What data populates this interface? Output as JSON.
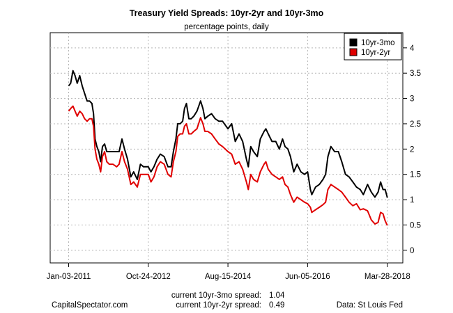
{
  "chart_data": {
    "type": "line",
    "title": "Treasury Yield Spreads: 10yr-2yr and 10yr-3mo",
    "subtitle": "percentage points, daily",
    "xlabel": "",
    "ylabel": "",
    "y_axis_side": "right",
    "ylim": [
      -0.25,
      4.3
    ],
    "yticks": [
      0,
      0.5,
      1,
      1.5,
      2,
      2.5,
      3,
      3.5,
      4
    ],
    "ytick_labels": [
      "0",
      "0.5",
      "1",
      "1.5",
      "2",
      "2.5",
      "3",
      "3.5",
      "4"
    ],
    "xlim": [
      "2010-08-03",
      "2018-08-03"
    ],
    "xticks": [
      "2011-01-03",
      "2012-10-24",
      "2014-08-15",
      "2016-06-05",
      "2018-03-28"
    ],
    "xtick_labels": [
      "Jan-03-2011",
      "Oct-24-2012",
      "Aug-15-2014",
      "Jun-05-2016",
      "Mar-28-2018"
    ],
    "grid": true,
    "legend_position": "top-right",
    "series": [
      {
        "name": "10yr-3mo",
        "color": "#000000",
        "points": [
          [
            "2011-01-03",
            3.25
          ],
          [
            "2011-01-20",
            3.3
          ],
          [
            "2011-02-08",
            3.55
          ],
          [
            "2011-02-25",
            3.45
          ],
          [
            "2011-03-15",
            3.3
          ],
          [
            "2011-04-05",
            3.45
          ],
          [
            "2011-04-25",
            3.25
          ],
          [
            "2011-05-15",
            3.1
          ],
          [
            "2011-06-05",
            2.95
          ],
          [
            "2011-06-25",
            2.95
          ],
          [
            "2011-07-15",
            2.9
          ],
          [
            "2011-07-28",
            2.7
          ],
          [
            "2011-08-10",
            2.2
          ],
          [
            "2011-08-25",
            2.05
          ],
          [
            "2011-09-10",
            1.95
          ],
          [
            "2011-09-25",
            1.75
          ],
          [
            "2011-10-10",
            2.05
          ],
          [
            "2011-10-28",
            2.1
          ],
          [
            "2011-11-15",
            1.95
          ],
          [
            "2011-12-05",
            1.95
          ],
          [
            "2012-01-05",
            1.95
          ],
          [
            "2012-02-05",
            1.95
          ],
          [
            "2012-02-25",
            1.95
          ],
          [
            "2012-03-20",
            2.2
          ],
          [
            "2012-04-10",
            2.0
          ],
          [
            "2012-05-05",
            1.8
          ],
          [
            "2012-06-01",
            1.45
          ],
          [
            "2012-06-25",
            1.55
          ],
          [
            "2012-07-25",
            1.4
          ],
          [
            "2012-08-20",
            1.7
          ],
          [
            "2012-09-15",
            1.65
          ],
          [
            "2012-10-24",
            1.65
          ],
          [
            "2012-11-15",
            1.55
          ],
          [
            "2012-12-10",
            1.65
          ],
          [
            "2013-01-05",
            1.8
          ],
          [
            "2013-02-01",
            1.9
          ],
          [
            "2013-03-05",
            1.85
          ],
          [
            "2013-04-05",
            1.65
          ],
          [
            "2013-05-01",
            1.65
          ],
          [
            "2013-05-20",
            1.95
          ],
          [
            "2013-06-10",
            2.2
          ],
          [
            "2013-06-25",
            2.5
          ],
          [
            "2013-07-15",
            2.5
          ],
          [
            "2013-08-05",
            2.55
          ],
          [
            "2013-08-20",
            2.8
          ],
          [
            "2013-09-05",
            2.9
          ],
          [
            "2013-09-25",
            2.6
          ],
          [
            "2013-10-15",
            2.6
          ],
          [
            "2013-11-05",
            2.65
          ],
          [
            "2013-12-01",
            2.75
          ],
          [
            "2013-12-31",
            2.95
          ],
          [
            "2014-01-20",
            2.8
          ],
          [
            "2014-02-05",
            2.6
          ],
          [
            "2014-03-01",
            2.65
          ],
          [
            "2014-04-01",
            2.7
          ],
          [
            "2014-05-01",
            2.6
          ],
          [
            "2014-06-01",
            2.55
          ],
          [
            "2014-07-01",
            2.55
          ],
          [
            "2014-08-15",
            2.4
          ],
          [
            "2014-09-15",
            2.5
          ],
          [
            "2014-10-15",
            2.15
          ],
          [
            "2014-11-15",
            2.3
          ],
          [
            "2014-12-15",
            2.15
          ],
          [
            "2015-01-15",
            1.8
          ],
          [
            "2015-01-31",
            1.65
          ],
          [
            "2015-02-20",
            2.05
          ],
          [
            "2015-03-15",
            1.95
          ],
          [
            "2015-04-15",
            1.85
          ],
          [
            "2015-05-10",
            2.2
          ],
          [
            "2015-06-10",
            2.35
          ],
          [
            "2015-06-25",
            2.4
          ],
          [
            "2015-07-15",
            2.3
          ],
          [
            "2015-08-15",
            2.15
          ],
          [
            "2015-09-15",
            2.15
          ],
          [
            "2015-10-15",
            2.0
          ],
          [
            "2015-11-10",
            2.2
          ],
          [
            "2015-12-01",
            2.05
          ],
          [
            "2015-12-25",
            2.0
          ],
          [
            "2016-01-15",
            1.85
          ],
          [
            "2016-02-11",
            1.55
          ],
          [
            "2016-03-10",
            1.7
          ],
          [
            "2016-04-10",
            1.55
          ],
          [
            "2016-05-10",
            1.5
          ],
          [
            "2016-06-05",
            1.55
          ],
          [
            "2016-06-28",
            1.2
          ],
          [
            "2016-07-10",
            1.1
          ],
          [
            "2016-08-10",
            1.25
          ],
          [
            "2016-09-10",
            1.3
          ],
          [
            "2016-10-10",
            1.4
          ],
          [
            "2016-11-01",
            1.5
          ],
          [
            "2016-11-20",
            1.85
          ],
          [
            "2016-12-15",
            2.05
          ],
          [
            "2017-01-15",
            1.95
          ],
          [
            "2017-02-15",
            1.95
          ],
          [
            "2017-03-15",
            1.75
          ],
          [
            "2017-04-15",
            1.5
          ],
          [
            "2017-05-15",
            1.45
          ],
          [
            "2017-06-15",
            1.35
          ],
          [
            "2017-07-15",
            1.25
          ],
          [
            "2017-08-15",
            1.2
          ],
          [
            "2017-09-10",
            1.1
          ],
          [
            "2017-10-15",
            1.3
          ],
          [
            "2017-11-15",
            1.15
          ],
          [
            "2017-12-15",
            1.05
          ],
          [
            "2018-01-10",
            1.15
          ],
          [
            "2018-01-31",
            1.35
          ],
          [
            "2018-02-20",
            1.2
          ],
          [
            "2018-03-10",
            1.2
          ],
          [
            "2018-03-28",
            1.04
          ]
        ]
      },
      {
        "name": "10yr-2yr",
        "color": "#e00000",
        "points": [
          [
            "2011-01-03",
            2.75
          ],
          [
            "2011-01-20",
            2.8
          ],
          [
            "2011-02-08",
            2.85
          ],
          [
            "2011-02-25",
            2.75
          ],
          [
            "2011-03-15",
            2.65
          ],
          [
            "2011-04-05",
            2.75
          ],
          [
            "2011-04-25",
            2.7
          ],
          [
            "2011-05-15",
            2.6
          ],
          [
            "2011-06-05",
            2.55
          ],
          [
            "2011-06-25",
            2.6
          ],
          [
            "2011-07-15",
            2.6
          ],
          [
            "2011-07-28",
            2.45
          ],
          [
            "2011-08-10",
            2.0
          ],
          [
            "2011-08-25",
            1.8
          ],
          [
            "2011-09-10",
            1.7
          ],
          [
            "2011-09-25",
            1.55
          ],
          [
            "2011-10-10",
            1.85
          ],
          [
            "2011-10-28",
            1.95
          ],
          [
            "2011-11-15",
            1.75
          ],
          [
            "2011-12-05",
            1.7
          ],
          [
            "2012-01-05",
            1.7
          ],
          [
            "2012-02-05",
            1.65
          ],
          [
            "2012-02-25",
            1.7
          ],
          [
            "2012-03-20",
            1.95
          ],
          [
            "2012-04-10",
            1.75
          ],
          [
            "2012-05-05",
            1.6
          ],
          [
            "2012-06-01",
            1.3
          ],
          [
            "2012-06-25",
            1.35
          ],
          [
            "2012-07-25",
            1.25
          ],
          [
            "2012-08-20",
            1.5
          ],
          [
            "2012-09-15",
            1.5
          ],
          [
            "2012-10-24",
            1.5
          ],
          [
            "2012-11-15",
            1.35
          ],
          [
            "2012-12-10",
            1.45
          ],
          [
            "2013-01-05",
            1.65
          ],
          [
            "2013-02-01",
            1.75
          ],
          [
            "2013-03-05",
            1.7
          ],
          [
            "2013-04-05",
            1.5
          ],
          [
            "2013-05-01",
            1.45
          ],
          [
            "2013-05-20",
            1.75
          ],
          [
            "2013-06-10",
            1.95
          ],
          [
            "2013-06-25",
            2.25
          ],
          [
            "2013-07-15",
            2.3
          ],
          [
            "2013-08-05",
            2.3
          ],
          [
            "2013-08-20",
            2.45
          ],
          [
            "2013-09-05",
            2.5
          ],
          [
            "2013-09-25",
            2.3
          ],
          [
            "2013-10-15",
            2.3
          ],
          [
            "2013-11-05",
            2.35
          ],
          [
            "2013-12-01",
            2.4
          ],
          [
            "2013-12-31",
            2.62
          ],
          [
            "2014-01-20",
            2.5
          ],
          [
            "2014-02-05",
            2.35
          ],
          [
            "2014-03-01",
            2.35
          ],
          [
            "2014-04-01",
            2.3
          ],
          [
            "2014-05-01",
            2.2
          ],
          [
            "2014-06-01",
            2.1
          ],
          [
            "2014-07-01",
            2.05
          ],
          [
            "2014-08-15",
            1.95
          ],
          [
            "2014-09-15",
            1.9
          ],
          [
            "2014-10-15",
            1.7
          ],
          [
            "2014-11-15",
            1.75
          ],
          [
            "2014-12-15",
            1.6
          ],
          [
            "2015-01-15",
            1.35
          ],
          [
            "2015-01-31",
            1.2
          ],
          [
            "2015-02-20",
            1.5
          ],
          [
            "2015-03-15",
            1.4
          ],
          [
            "2015-04-15",
            1.35
          ],
          [
            "2015-05-10",
            1.55
          ],
          [
            "2015-06-10",
            1.7
          ],
          [
            "2015-06-25",
            1.75
          ],
          [
            "2015-07-15",
            1.6
          ],
          [
            "2015-08-15",
            1.5
          ],
          [
            "2015-09-15",
            1.45
          ],
          [
            "2015-10-15",
            1.4
          ],
          [
            "2015-11-10",
            1.45
          ],
          [
            "2015-12-01",
            1.3
          ],
          [
            "2015-12-25",
            1.25
          ],
          [
            "2016-01-15",
            1.1
          ],
          [
            "2016-02-11",
            0.95
          ],
          [
            "2016-03-10",
            1.05
          ],
          [
            "2016-04-10",
            1.0
          ],
          [
            "2016-05-10",
            0.95
          ],
          [
            "2016-06-05",
            0.92
          ],
          [
            "2016-06-28",
            0.85
          ],
          [
            "2016-07-10",
            0.75
          ],
          [
            "2016-08-10",
            0.8
          ],
          [
            "2016-09-10",
            0.85
          ],
          [
            "2016-10-10",
            0.9
          ],
          [
            "2016-11-01",
            0.95
          ],
          [
            "2016-11-20",
            1.2
          ],
          [
            "2016-12-15",
            1.3
          ],
          [
            "2017-01-15",
            1.25
          ],
          [
            "2017-02-15",
            1.2
          ],
          [
            "2017-03-15",
            1.15
          ],
          [
            "2017-04-15",
            1.05
          ],
          [
            "2017-05-15",
            0.95
          ],
          [
            "2017-06-15",
            0.88
          ],
          [
            "2017-07-15",
            0.92
          ],
          [
            "2017-08-15",
            0.8
          ],
          [
            "2017-09-10",
            0.82
          ],
          [
            "2017-10-15",
            0.78
          ],
          [
            "2017-11-15",
            0.6
          ],
          [
            "2017-12-15",
            0.52
          ],
          [
            "2018-01-10",
            0.55
          ],
          [
            "2018-01-31",
            0.75
          ],
          [
            "2018-02-20",
            0.72
          ],
          [
            "2018-03-10",
            0.58
          ],
          [
            "2018-03-28",
            0.49
          ]
        ]
      }
    ]
  },
  "footer": {
    "source_left": "CapitalSpectator.com",
    "source_right": "Data: St Louis Fed",
    "current_3mo_label": "current 10yr-3mo spread:",
    "current_3mo_value": "1.04",
    "current_2yr_label": "current 10yr-2yr spread:",
    "current_2yr_value": "0.49"
  }
}
